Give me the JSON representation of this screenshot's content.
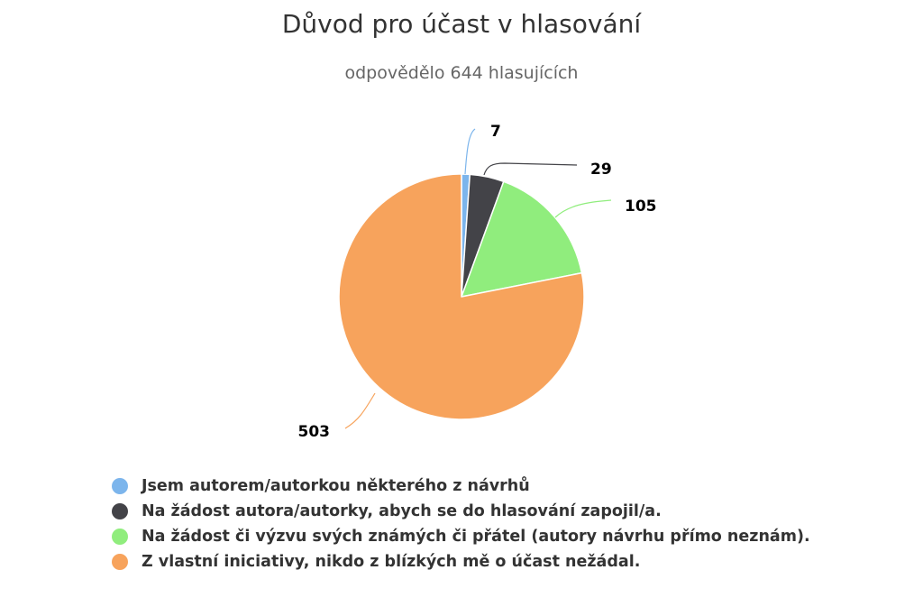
{
  "chart_data": {
    "type": "pie",
    "title": "Důvod pro účast v hlasování",
    "subtitle": "odpovědělo 644 hlasujících",
    "series": [
      {
        "categories": [
          "Jsem autorem/autorkou některého z návrhů",
          "Na žádost autora/autorky, abych se do hlasování zapojil/a.",
          "Na žádost či výzvu svých známých či přátel (autory návrhu přímo neznám).",
          "Z vlastní iniciativy, nikdo z blízkých mě o účast nežádal."
        ],
        "values": [
          7,
          29,
          105,
          503
        ],
        "colors": [
          "#7cb5ec",
          "#434348",
          "#90ed7d",
          "#f7a35c"
        ]
      }
    ],
    "data_labels": [
      "7",
      "29",
      "105",
      "503"
    ],
    "legend_position": "bottom-left"
  }
}
